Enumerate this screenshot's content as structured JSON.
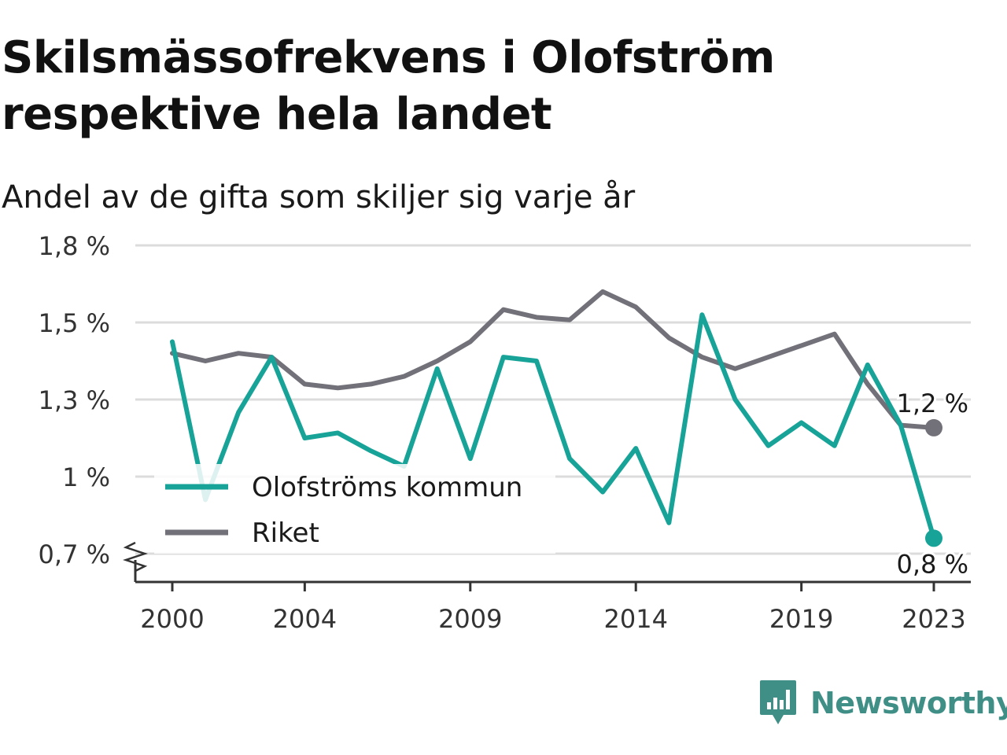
{
  "title": "Skilsmässofrekvens i Olofström respektive hela landet",
  "subtitle": "Andel av de gifta som skiljer sig varje år",
  "brand": {
    "name": "Newsworthy",
    "icon": "newsworthy-logo-icon",
    "color": "#3f8f87"
  },
  "chart_data": {
    "type": "line",
    "title": "Skilsmässofrekvens i Olofström respektive hela landet",
    "subtitle": "Andel av de gifta som skiljer sig varje år",
    "xlabel": "",
    "ylabel": "",
    "x": [
      2000,
      2001,
      2002,
      2003,
      2004,
      2005,
      2006,
      2007,
      2008,
      2009,
      2010,
      2011,
      2012,
      2013,
      2014,
      2015,
      2016,
      2017,
      2018,
      2019,
      2020,
      2021,
      2022,
      2023
    ],
    "x_ticks": [
      2000,
      2004,
      2009,
      2014,
      2019,
      2023
    ],
    "x_tick_labels": [
      "2000",
      "2004",
      "2009",
      "2014",
      "2019",
      "2023"
    ],
    "y_ticks": [
      0.7,
      1.0,
      1.3,
      1.5,
      1.8
    ],
    "y_tick_labels": [
      "0,7 %",
      "1 %",
      "1,3 %",
      "1,5 %",
      "1,8 %"
    ],
    "y_axis_break": true,
    "grid": true,
    "legend_position": "bottom-left",
    "series": [
      {
        "name": "Olofströms kommun",
        "color": "#17a398",
        "values": [
          1.45,
          0.91,
          1.25,
          1.41,
          1.15,
          1.17,
          1.1,
          1.04,
          1.38,
          1.07,
          1.41,
          1.4,
          1.07,
          0.94,
          1.11,
          0.82,
          1.53,
          1.3,
          1.12,
          1.21,
          1.12,
          1.39,
          1.2,
          0.76
        ],
        "end_label": "0,8 %"
      },
      {
        "name": "Riket",
        "color": "#727078",
        "values": [
          1.42,
          1.4,
          1.42,
          1.41,
          1.34,
          1.33,
          1.34,
          1.36,
          1.4,
          1.45,
          1.55,
          1.52,
          1.51,
          1.62,
          1.56,
          1.46,
          1.41,
          1.38,
          1.41,
          1.44,
          1.47,
          1.34,
          1.2,
          1.19
        ],
        "end_label": "1,2 %"
      }
    ]
  }
}
